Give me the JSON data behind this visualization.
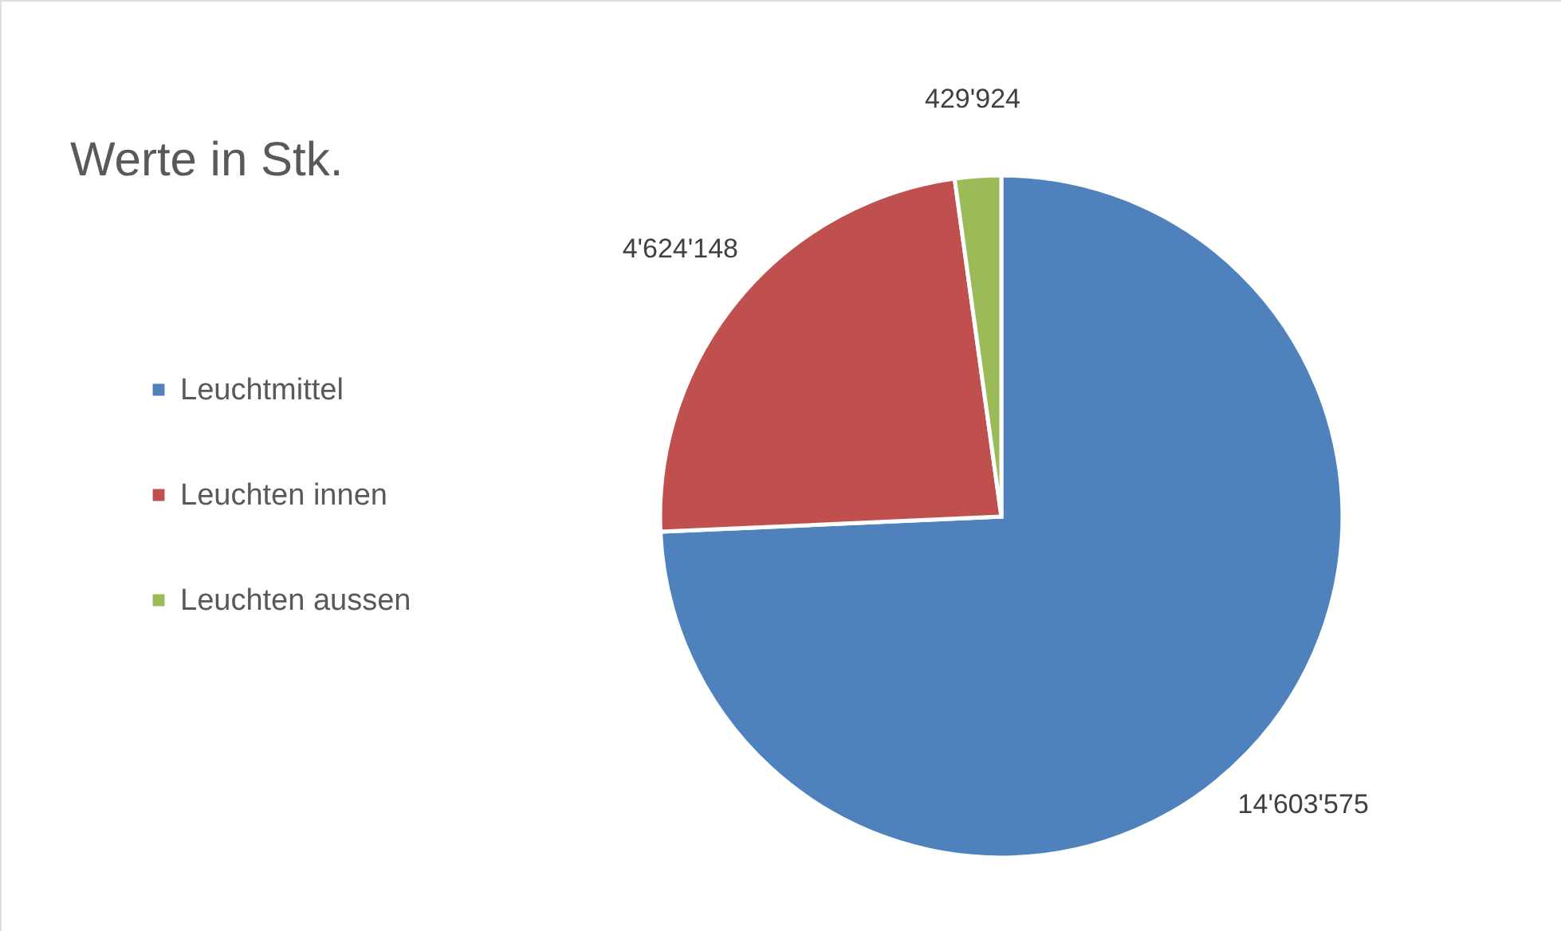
{
  "chart_data": {
    "type": "pie",
    "title": "Werte in Stk.",
    "categories": [
      "Leuchtmittel",
      "Leuchten innen",
      "Leuchten aussen"
    ],
    "values": [
      14603575,
      4624148,
      429924
    ],
    "colors": [
      "#4f81bd",
      "#c0504d",
      "#9bbb59"
    ],
    "value_labels": [
      "14'603'575",
      "4'624'148",
      "429'924"
    ],
    "legend": "left"
  }
}
